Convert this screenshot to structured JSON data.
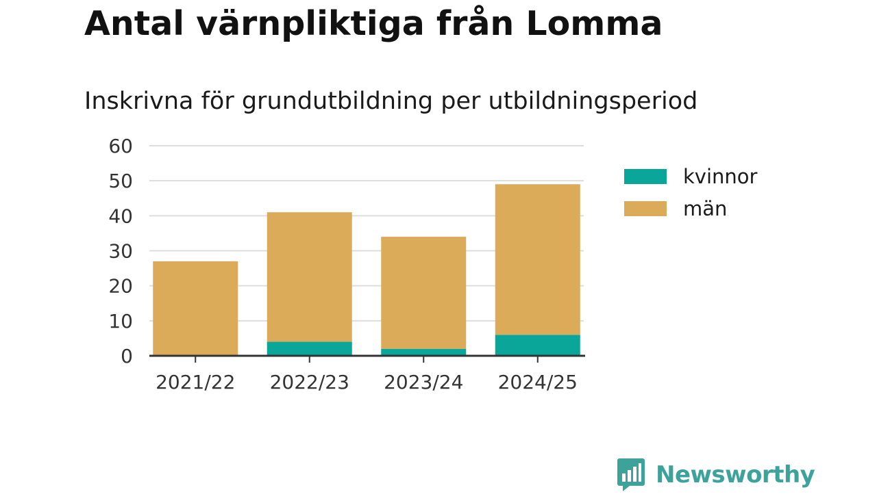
{
  "header": {
    "title": "Antal värnpliktiga från Lomma",
    "subtitle": "Inskrivna för grundutbildning per utbildningsperiod"
  },
  "colors": {
    "kvinnor": "#0aa69a",
    "man": "#dbab5a",
    "gridline": "#dddddd",
    "axis": "#333333",
    "brand": "#3da39a"
  },
  "chart_data": {
    "type": "bar",
    "stacked": true,
    "title": "Antal värnpliktiga från Lomma",
    "subtitle": "Inskrivna för grundutbildning per utbildningsperiod",
    "xlabel": "",
    "ylabel": "",
    "categories": [
      "2021/22",
      "2022/23",
      "2023/24",
      "2024/25"
    ],
    "series": [
      {
        "name": "kvinnor",
        "values": [
          0,
          4,
          2,
          6
        ]
      },
      {
        "name": "män",
        "values": [
          27,
          37,
          32,
          43
        ]
      }
    ],
    "ylim": [
      0,
      60
    ],
    "yticks": [
      0,
      10,
      20,
      30,
      40,
      50,
      60
    ],
    "grid": true,
    "legend": "right"
  },
  "legend": {
    "items": [
      {
        "label": "kvinnor",
        "color": "#0aa69a"
      },
      {
        "label": "män",
        "color": "#dbab5a"
      }
    ]
  },
  "branding": {
    "name": "Newsworthy",
    "icon": "bar-chart-speech-bubble-icon"
  }
}
